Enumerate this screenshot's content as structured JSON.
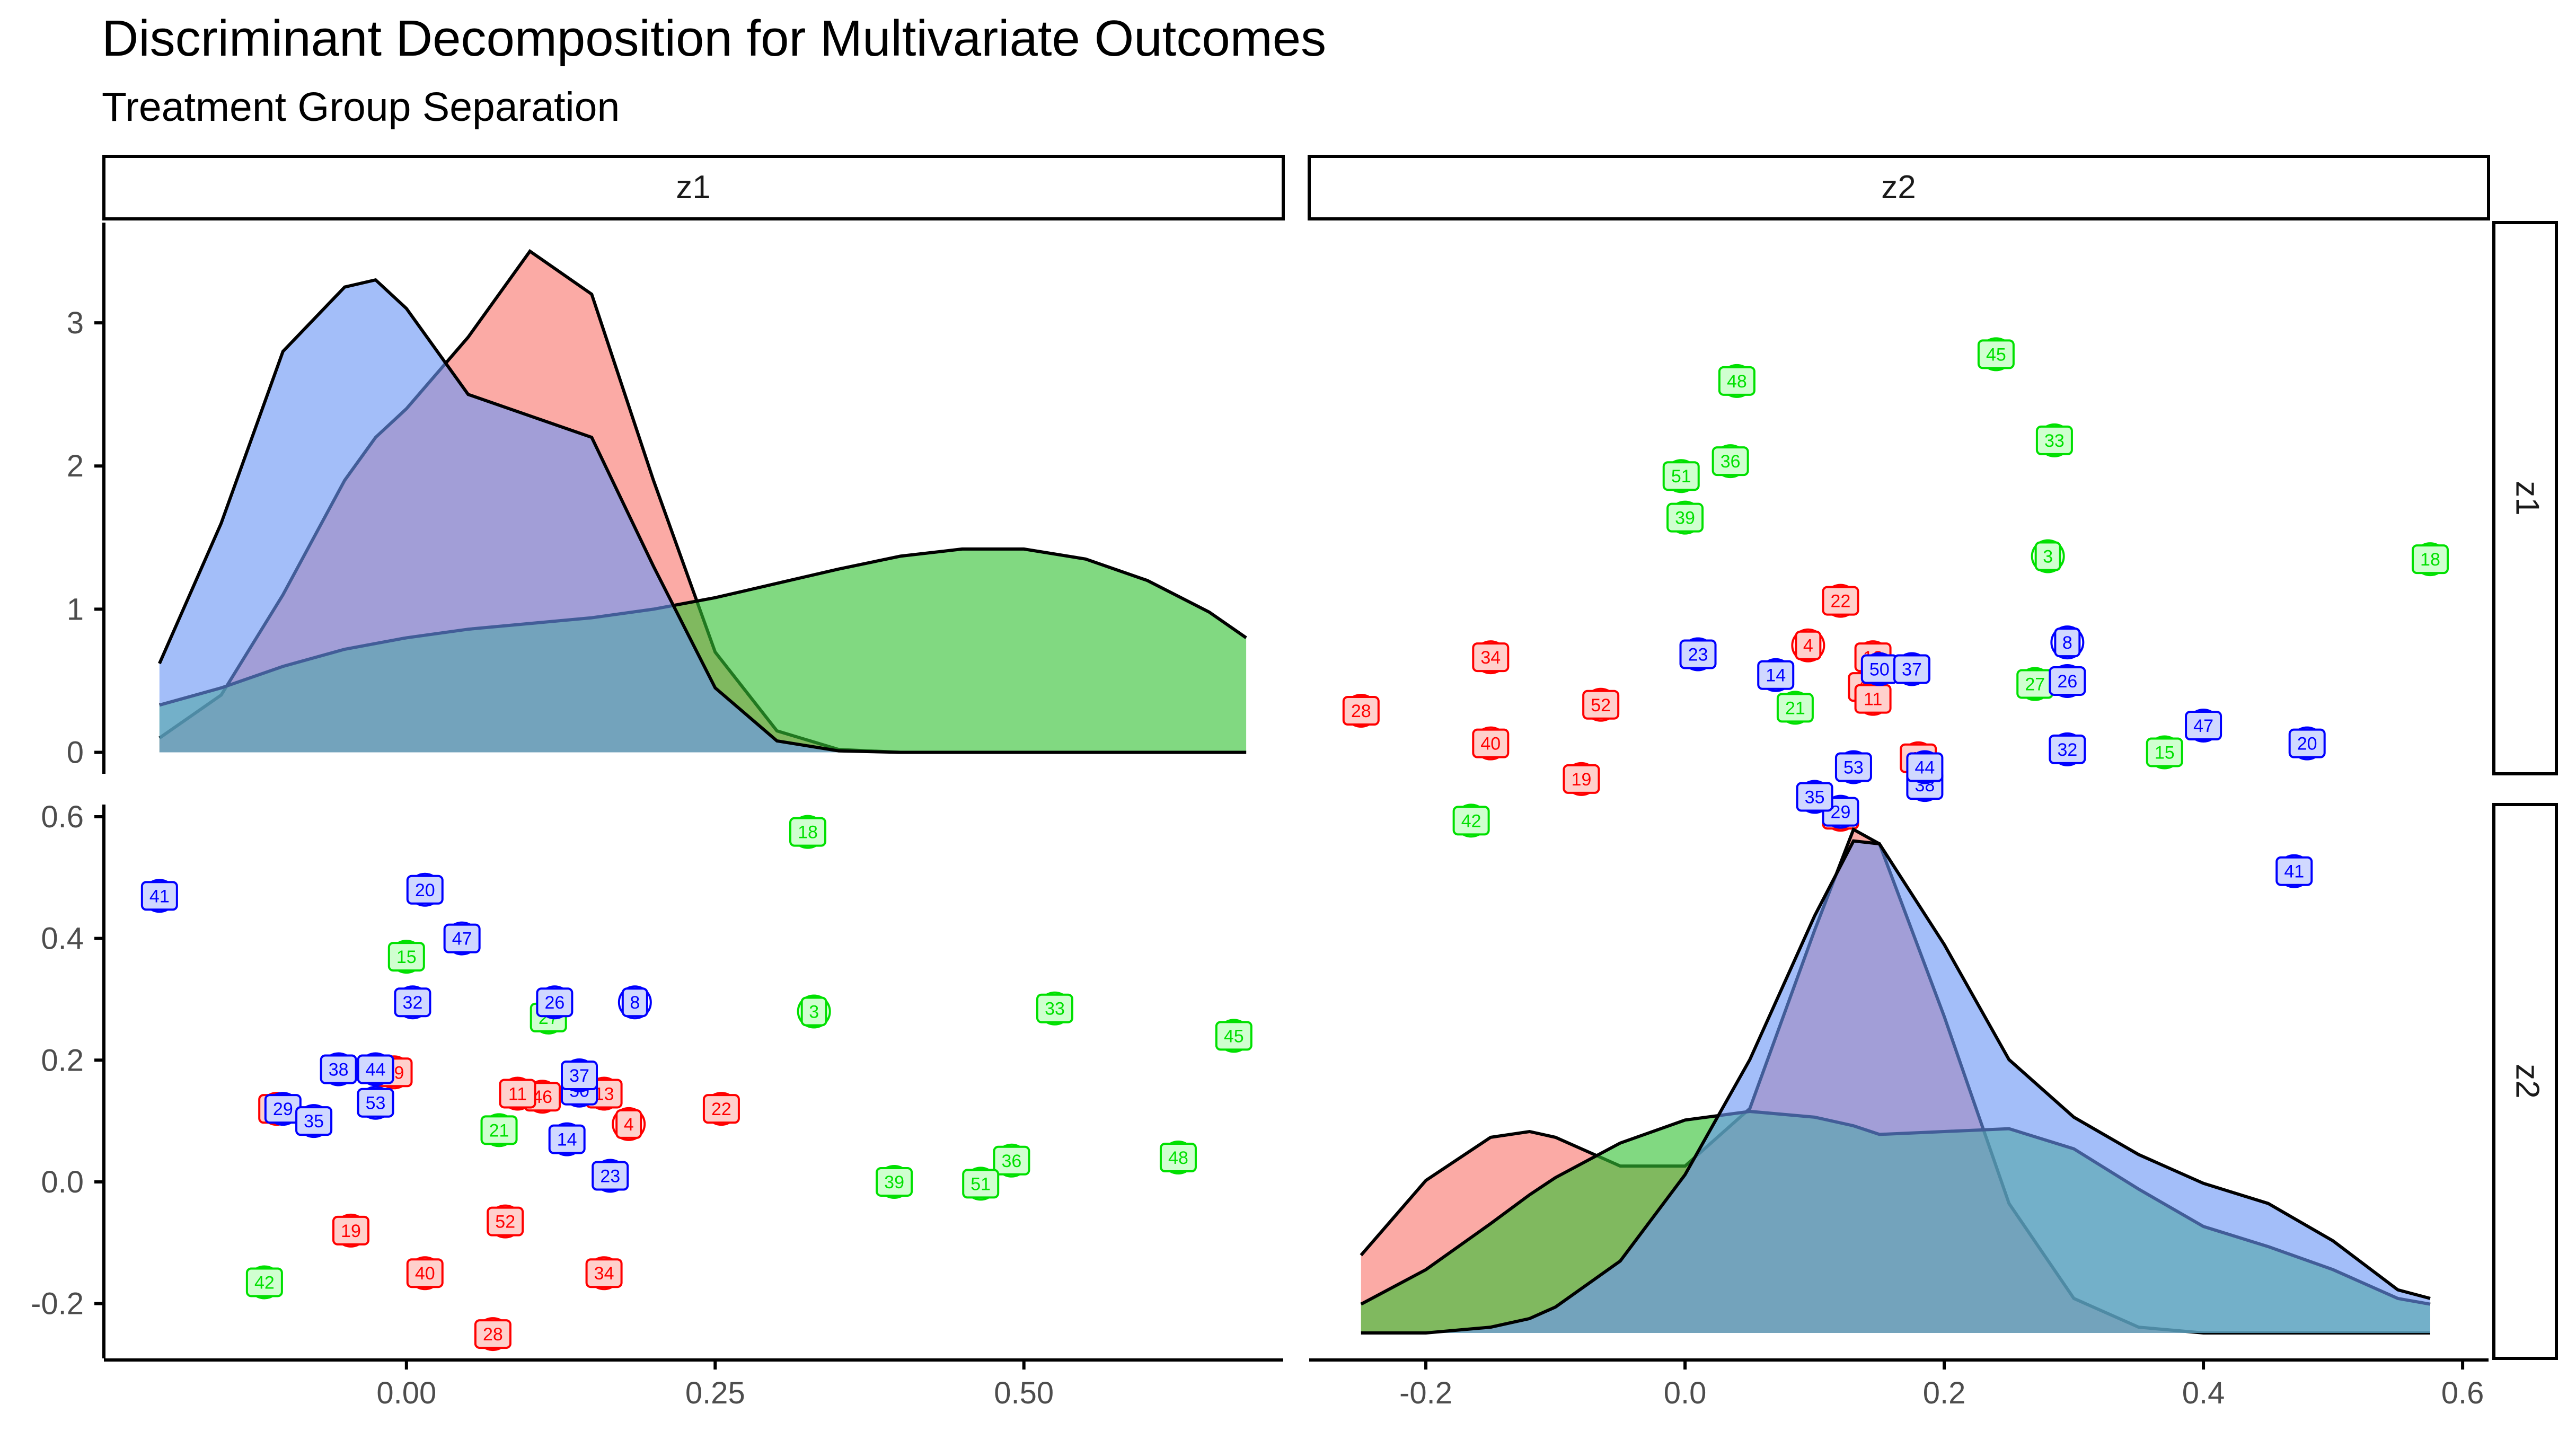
{
  "title": "Discriminant Decomposition for Multivariate Outcomes",
  "subtitle": "Treatment Group Separation",
  "colors": {
    "red_fill": "#F8766D",
    "green_fill": "#33C233",
    "blue_fill": "#6A96F5",
    "red_text": "#FF0000",
    "green_text": "#00E000",
    "blue_text": "#0000FF",
    "red_box": "#FFD0CC",
    "green_box": "#D0FFD0",
    "blue_box": "#D0D8FF"
  },
  "chart_data": {
    "type": "scatter",
    "layout": "pairs-matrix",
    "variables": [
      "z1",
      "z2"
    ],
    "facet_col_labels": [
      "z1",
      "z2"
    ],
    "facet_row_labels": [
      "z1",
      "z2"
    ],
    "x_axis": {
      "z1": {
        "range": [
          -0.245,
          0.71
        ],
        "ticks": [
          0.0,
          0.25,
          0.5
        ],
        "tick_labels": [
          "0.00",
          "0.25",
          "0.50"
        ]
      },
      "z2": {
        "range": [
          -0.29,
          0.62
        ],
        "ticks": [
          -0.2,
          0.0,
          0.2,
          0.4,
          0.6
        ],
        "tick_labels": [
          "-0.2",
          "0.0",
          "0.2",
          "0.4",
          "0.6"
        ]
      }
    },
    "y_axis": {
      "top_row": {
        "range": [
          -0.15,
          3.7
        ],
        "ticks": [
          0,
          1,
          2,
          3
        ],
        "tick_labels": [
          "0",
          "1",
          "2",
          "3"
        ]
      },
      "bottom_row": {
        "range": [
          -0.29,
          0.62
        ],
        "ticks": [
          -0.2,
          0.0,
          0.2,
          0.4,
          0.6
        ],
        "tick_labels": [
          "-0.2",
          "0.0",
          "0.2",
          "0.4",
          "0.6"
        ]
      }
    },
    "groups": [
      "red",
      "green",
      "blue"
    ],
    "points": [
      {
        "id": "28",
        "group": "red",
        "z1": 0.07,
        "z2": -0.25
      },
      {
        "id": "34",
        "group": "red",
        "z1": 0.16,
        "z2": -0.15
      },
      {
        "id": "52",
        "group": "red",
        "z1": 0.08,
        "z2": -0.065
      },
      {
        "id": "40",
        "group": "red",
        "z1": 0.015,
        "z2": -0.15
      },
      {
        "id": "19",
        "group": "red",
        "z1": -0.045,
        "z2": -0.08
      },
      {
        "id": "22",
        "group": "red",
        "z1": 0.255,
        "z2": 0.12
      },
      {
        "id": "4",
        "group": "red",
        "z1": 0.18,
        "z2": 0.095
      },
      {
        "id": "46",
        "group": "red",
        "z1": 0.11,
        "z2": 0.14
      },
      {
        "id": "13",
        "group": "red",
        "z1": 0.16,
        "z2": 0.145
      },
      {
        "id": "11",
        "group": "red",
        "z1": 0.09,
        "z2": 0.145
      },
      {
        "id": "49",
        "group": "red",
        "z1": -0.01,
        "z2": 0.18
      },
      {
        "id": "24",
        "group": "red",
        "z1": -0.105,
        "z2": 0.12
      },
      {
        "id": "18",
        "group": "green",
        "z1": 0.325,
        "z2": 0.575
      },
      {
        "id": "3",
        "group": "green",
        "z1": 0.33,
        "z2": 0.28
      },
      {
        "id": "33",
        "group": "green",
        "z1": 0.525,
        "z2": 0.285
      },
      {
        "id": "45",
        "group": "green",
        "z1": 0.67,
        "z2": 0.24
      },
      {
        "id": "48",
        "group": "green",
        "z1": 0.625,
        "z2": 0.04
      },
      {
        "id": "36",
        "group": "green",
        "z1": 0.49,
        "z2": 0.035
      },
      {
        "id": "51",
        "group": "green",
        "z1": 0.465,
        "z2": -0.003
      },
      {
        "id": "39",
        "group": "green",
        "z1": 0.395,
        "z2": 0.0
      },
      {
        "id": "15",
        "group": "green",
        "z1": 0.0,
        "z2": 0.37
      },
      {
        "id": "27",
        "group": "green",
        "z1": 0.115,
        "z2": 0.27
      },
      {
        "id": "21",
        "group": "green",
        "z1": 0.075,
        "z2": 0.085
      },
      {
        "id": "42",
        "group": "green",
        "z1": -0.115,
        "z2": -0.165
      },
      {
        "id": "41",
        "group": "blue",
        "z1": -0.2,
        "z2": 0.47
      },
      {
        "id": "20",
        "group": "blue",
        "z1": 0.015,
        "z2": 0.48
      },
      {
        "id": "47",
        "group": "blue",
        "z1": 0.045,
        "z2": 0.4
      },
      {
        "id": "32",
        "group": "blue",
        "z1": 0.005,
        "z2": 0.295
      },
      {
        "id": "26",
        "group": "blue",
        "z1": 0.12,
        "z2": 0.295
      },
      {
        "id": "8",
        "group": "blue",
        "z1": 0.185,
        "z2": 0.295
      },
      {
        "id": "50",
        "group": "blue",
        "z1": 0.14,
        "z2": 0.15
      },
      {
        "id": "14",
        "group": "blue",
        "z1": 0.13,
        "z2": 0.07
      },
      {
        "id": "23",
        "group": "blue",
        "z1": 0.165,
        "z2": 0.01
      },
      {
        "id": "38",
        "group": "blue",
        "z1": -0.055,
        "z2": 0.185
      },
      {
        "id": "44",
        "group": "blue",
        "z1": -0.025,
        "z2": 0.185
      },
      {
        "id": "53",
        "group": "blue",
        "z1": -0.025,
        "z2": 0.13
      },
      {
        "id": "29",
        "group": "blue",
        "z1": -0.1,
        "z2": 0.12
      },
      {
        "id": "35",
        "group": "blue",
        "z1": -0.075,
        "z2": 0.1
      },
      {
        "id": "37",
        "group": "blue",
        "z1": 0.14,
        "z2": 0.175
      }
    ],
    "densities": {
      "z1": {
        "x": [
          -0.2,
          -0.15,
          -0.1,
          -0.05,
          -0.025,
          0.0,
          0.05,
          0.1,
          0.15,
          0.2,
          0.25,
          0.3,
          0.35,
          0.4,
          0.45,
          0.5,
          0.55,
          0.6,
          0.65,
          0.68
        ],
        "red": [
          0.1,
          0.4,
          1.1,
          1.9,
          2.2,
          2.4,
          2.9,
          3.5,
          3.2,
          1.9,
          0.7,
          0.15,
          0.02,
          0.0,
          0.0,
          0.0,
          0.0,
          0.0,
          0.0,
          0.0
        ],
        "green": [
          0.33,
          0.45,
          0.6,
          0.72,
          0.76,
          0.8,
          0.86,
          0.9,
          0.94,
          1.0,
          1.08,
          1.18,
          1.28,
          1.37,
          1.42,
          1.42,
          1.35,
          1.2,
          0.98,
          0.8
        ],
        "blue": [
          0.62,
          1.6,
          2.8,
          3.25,
          3.3,
          3.1,
          2.5,
          2.35,
          2.2,
          1.3,
          0.45,
          0.08,
          0.01,
          0.0,
          0.0,
          0.0,
          0.0,
          0.0,
          0.0,
          0.0
        ]
      },
      "z2": {
        "x": [
          -0.25,
          -0.2,
          -0.15,
          -0.12,
          -0.1,
          -0.05,
          0.0,
          0.05,
          0.1,
          0.13,
          0.15,
          0.2,
          0.25,
          0.3,
          0.35,
          0.4,
          0.45,
          0.5,
          0.55,
          0.575
        ],
        "red": [
          0.27,
          0.53,
          0.68,
          0.7,
          0.68,
          0.58,
          0.58,
          0.78,
          1.4,
          1.75,
          1.7,
          1.1,
          0.45,
          0.12,
          0.02,
          0.0,
          0.0,
          0.0,
          0.0,
          0.0
        ],
        "green": [
          0.1,
          0.22,
          0.38,
          0.48,
          0.54,
          0.66,
          0.74,
          0.77,
          0.75,
          0.72,
          0.69,
          0.7,
          0.71,
          0.64,
          0.5,
          0.37,
          0.3,
          0.22,
          0.12,
          0.1
        ],
        "blue": [
          0.0,
          0.0,
          0.02,
          0.05,
          0.09,
          0.25,
          0.55,
          0.95,
          1.45,
          1.71,
          1.7,
          1.35,
          0.95,
          0.75,
          0.62,
          0.52,
          0.45,
          0.32,
          0.15,
          0.12
        ]
      }
    }
  }
}
